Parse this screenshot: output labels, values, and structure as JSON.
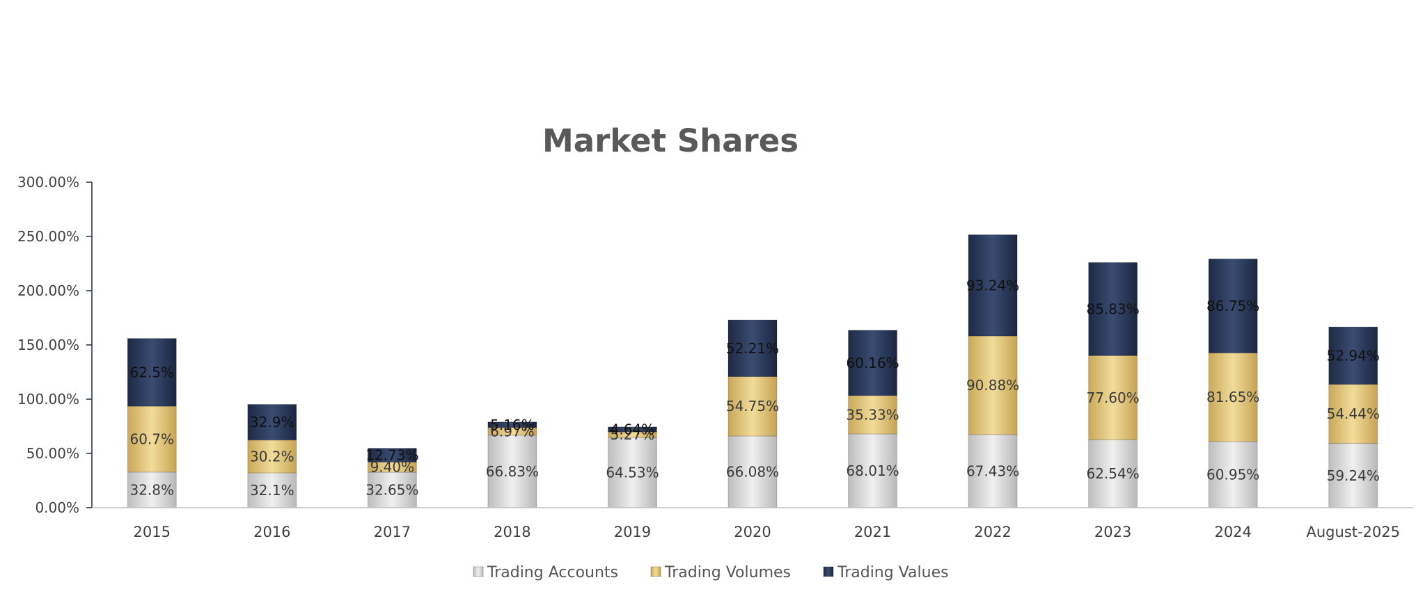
{
  "chart_data": {
    "type": "bar",
    "stacked": true,
    "title": "Market Shares",
    "xlabel": "",
    "ylabel": "",
    "ylim": [
      0,
      300
    ],
    "y_ticks": [
      "0.00%",
      "50.00%",
      "100.00%",
      "150.00%",
      "200.00%",
      "250.00%",
      "300.00%"
    ],
    "categories": [
      "2015",
      "2016",
      "2017",
      "2018",
      "2019",
      "2020",
      "2021",
      "2022",
      "2023",
      "2024",
      "August-2025"
    ],
    "series": [
      {
        "name": "Trading Accounts",
        "color": "#d9d9d9",
        "values": [
          32.8,
          32.1,
          32.65,
          66.83,
          64.53,
          66.08,
          68.01,
          67.43,
          62.54,
          60.95,
          59.24
        ],
        "labels": [
          "32.8%",
          "32.1%",
          "32.65%",
          "66.83%",
          "64.53%",
          "66.08%",
          "68.01%",
          "67.43%",
          "62.54%",
          "60.95%",
          "59.24%"
        ]
      },
      {
        "name": "Trading Volumes",
        "color": "#e8cc7e",
        "values": [
          60.7,
          30.2,
          9.4,
          6.97,
          5.27,
          54.75,
          35.33,
          90.88,
          77.6,
          81.65,
          54.44
        ],
        "labels": [
          "60.7%",
          "30.2%",
          "9.40%",
          "6.97%",
          "5.27%",
          "54.75%",
          "35.33%",
          "90.88%",
          "77.60%",
          "81.65%",
          "54.44%"
        ]
      },
      {
        "name": "Trading Values",
        "color": "#2c3b5c",
        "values": [
          62.5,
          32.9,
          12.73,
          5.16,
          4.64,
          52.21,
          60.16,
          93.24,
          85.83,
          86.75,
          52.94
        ],
        "labels": [
          "62.5%",
          "32.9%",
          "12.73%",
          "5.16%",
          "4.64%",
          "52.21%",
          "60.16%",
          "93.24%",
          "85.83%",
          "86.75%",
          "52.94%"
        ]
      }
    ],
    "grid": false,
    "legend_position": "bottom"
  }
}
